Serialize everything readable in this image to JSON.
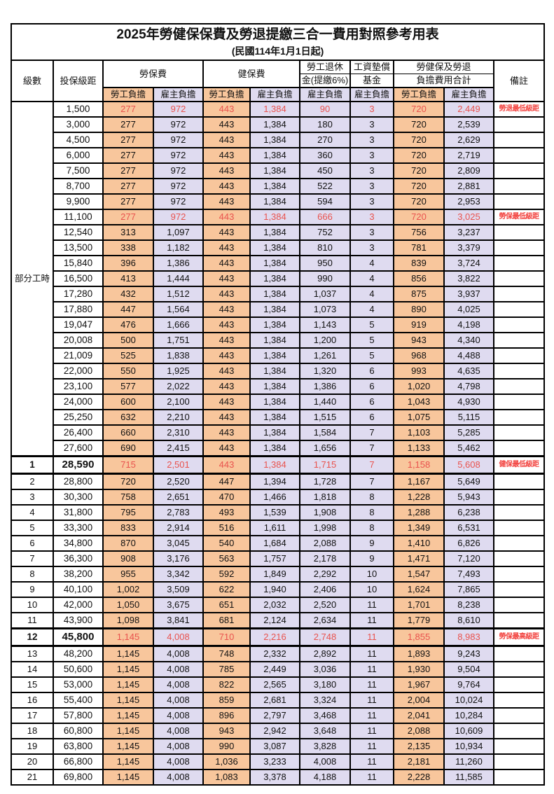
{
  "title": "2025年勞健保保費及勞退提繳三合一費用對照參考用表",
  "subtitle": "(民國114年1月1日起)",
  "header": {
    "level": "級數",
    "bracket": "投保級距",
    "labor": "勞保費",
    "health": "健保費",
    "pension_line1": "勞工退休",
    "pension_line2": "金(提繳6%)",
    "wagefund_line1": "工資墊償",
    "wagefund_line2": "基金",
    "total_line1": "勞健保及勞退",
    "total_line2": "負擔費用合計",
    "remark": "備註",
    "employee": "勞工負擔",
    "employer": "雇主負擔"
  },
  "colors": {
    "employee_bg": "#f8c69c",
    "employer_bg": "#dfdbf0",
    "value_red": "#e9534e",
    "remark_red": "#f2423e",
    "border": "#000000"
  },
  "part_time_label": "部分工時",
  "part_time_rowspan": 23,
  "rows": [
    {
      "level": "",
      "bracket": "1,500",
      "values": [
        "277",
        "972",
        "443",
        "1,384",
        "90",
        "3",
        "720",
        "2,449"
      ],
      "remark": "勞退最低級距",
      "red": true,
      "bold": false
    },
    {
      "level": "",
      "bracket": "3,000",
      "values": [
        "277",
        "972",
        "443",
        "1,384",
        "180",
        "3",
        "720",
        "2,539"
      ],
      "remark": "",
      "red": false,
      "bold": false
    },
    {
      "level": "",
      "bracket": "4,500",
      "values": [
        "277",
        "972",
        "443",
        "1,384",
        "270",
        "3",
        "720",
        "2,629"
      ],
      "remark": "",
      "red": false,
      "bold": false
    },
    {
      "level": "",
      "bracket": "6,000",
      "values": [
        "277",
        "972",
        "443",
        "1,384",
        "360",
        "3",
        "720",
        "2,719"
      ],
      "remark": "",
      "red": false,
      "bold": false
    },
    {
      "level": "",
      "bracket": "7,500",
      "values": [
        "277",
        "972",
        "443",
        "1,384",
        "450",
        "3",
        "720",
        "2,809"
      ],
      "remark": "",
      "red": false,
      "bold": false
    },
    {
      "level": "",
      "bracket": "8,700",
      "values": [
        "277",
        "972",
        "443",
        "1,384",
        "522",
        "3",
        "720",
        "2,881"
      ],
      "remark": "",
      "red": false,
      "bold": false
    },
    {
      "level": "",
      "bracket": "9,900",
      "values": [
        "277",
        "972",
        "443",
        "1,384",
        "594",
        "3",
        "720",
        "2,953"
      ],
      "remark": "",
      "red": false,
      "bold": false
    },
    {
      "level": "",
      "bracket": "11,100",
      "values": [
        "277",
        "972",
        "443",
        "1,384",
        "666",
        "3",
        "720",
        "3,025"
      ],
      "remark": "勞保最低級距",
      "red": true,
      "bold": false
    },
    {
      "level": "",
      "bracket": "12,540",
      "values": [
        "313",
        "1,097",
        "443",
        "1,384",
        "752",
        "3",
        "756",
        "3,237"
      ],
      "remark": "",
      "red": false,
      "bold": false
    },
    {
      "level": "",
      "bracket": "13,500",
      "values": [
        "338",
        "1,182",
        "443",
        "1,384",
        "810",
        "3",
        "781",
        "3,379"
      ],
      "remark": "",
      "red": false,
      "bold": false
    },
    {
      "level": "",
      "bracket": "15,840",
      "values": [
        "396",
        "1,386",
        "443",
        "1,384",
        "950",
        "4",
        "839",
        "3,724"
      ],
      "remark": "",
      "red": false,
      "bold": false
    },
    {
      "level": "",
      "bracket": "16,500",
      "values": [
        "413",
        "1,444",
        "443",
        "1,384",
        "990",
        "4",
        "856",
        "3,822"
      ],
      "remark": "",
      "red": false,
      "bold": false
    },
    {
      "level": "",
      "bracket": "17,280",
      "values": [
        "432",
        "1,512",
        "443",
        "1,384",
        "1,037",
        "4",
        "875",
        "3,937"
      ],
      "remark": "",
      "red": false,
      "bold": false
    },
    {
      "level": "",
      "bracket": "17,880",
      "values": [
        "447",
        "1,564",
        "443",
        "1,384",
        "1,073",
        "4",
        "890",
        "4,025"
      ],
      "remark": "",
      "red": false,
      "bold": false
    },
    {
      "level": "",
      "bracket": "19,047",
      "values": [
        "476",
        "1,666",
        "443",
        "1,384",
        "1,143",
        "5",
        "919",
        "4,198"
      ],
      "remark": "",
      "red": false,
      "bold": false
    },
    {
      "level": "",
      "bracket": "20,008",
      "values": [
        "500",
        "1,751",
        "443",
        "1,384",
        "1,200",
        "5",
        "943",
        "4,340"
      ],
      "remark": "",
      "red": false,
      "bold": false
    },
    {
      "level": "",
      "bracket": "21,009",
      "values": [
        "525",
        "1,838",
        "443",
        "1,384",
        "1,261",
        "5",
        "968",
        "4,488"
      ],
      "remark": "",
      "red": false,
      "bold": false
    },
    {
      "level": "",
      "bracket": "22,000",
      "values": [
        "550",
        "1,925",
        "443",
        "1,384",
        "1,320",
        "6",
        "993",
        "4,635"
      ],
      "remark": "",
      "red": false,
      "bold": false
    },
    {
      "level": "",
      "bracket": "23,100",
      "values": [
        "577",
        "2,022",
        "443",
        "1,384",
        "1,386",
        "6",
        "1,020",
        "4,798"
      ],
      "remark": "",
      "red": false,
      "bold": false
    },
    {
      "level": "",
      "bracket": "24,000",
      "values": [
        "600",
        "2,100",
        "443",
        "1,384",
        "1,440",
        "6",
        "1,043",
        "4,930"
      ],
      "remark": "",
      "red": false,
      "bold": false
    },
    {
      "level": "",
      "bracket": "25,250",
      "values": [
        "632",
        "2,210",
        "443",
        "1,384",
        "1,515",
        "6",
        "1,075",
        "5,115"
      ],
      "remark": "",
      "red": false,
      "bold": false
    },
    {
      "level": "",
      "bracket": "26,400",
      "values": [
        "660",
        "2,310",
        "443",
        "1,384",
        "1,584",
        "7",
        "1,103",
        "5,285"
      ],
      "remark": "",
      "red": false,
      "bold": false
    },
    {
      "level": "",
      "bracket": "27,600",
      "values": [
        "690",
        "2,415",
        "443",
        "1,384",
        "1,656",
        "7",
        "1,133",
        "5,462"
      ],
      "remark": "",
      "red": false,
      "bold": false
    },
    {
      "level": "1",
      "bracket": "28,590",
      "values": [
        "715",
        "2,501",
        "443",
        "1,384",
        "1,715",
        "7",
        "1,158",
        "5,608"
      ],
      "remark": "健保最低級距",
      "red": true,
      "bold": true
    },
    {
      "level": "2",
      "bracket": "28,800",
      "values": [
        "720",
        "2,520",
        "447",
        "1,394",
        "1,728",
        "7",
        "1,167",
        "5,649"
      ],
      "remark": "",
      "red": false,
      "bold": false
    },
    {
      "level": "3",
      "bracket": "30,300",
      "values": [
        "758",
        "2,651",
        "470",
        "1,466",
        "1,818",
        "8",
        "1,228",
        "5,943"
      ],
      "remark": "",
      "red": false,
      "bold": false
    },
    {
      "level": "4",
      "bracket": "31,800",
      "values": [
        "795",
        "2,783",
        "493",
        "1,539",
        "1,908",
        "8",
        "1,288",
        "6,238"
      ],
      "remark": "",
      "red": false,
      "bold": false
    },
    {
      "level": "5",
      "bracket": "33,300",
      "values": [
        "833",
        "2,914",
        "516",
        "1,611",
        "1,998",
        "8",
        "1,349",
        "6,531"
      ],
      "remark": "",
      "red": false,
      "bold": false
    },
    {
      "level": "6",
      "bracket": "34,800",
      "values": [
        "870",
        "3,045",
        "540",
        "1,684",
        "2,088",
        "9",
        "1,410",
        "6,826"
      ],
      "remark": "",
      "red": false,
      "bold": false
    },
    {
      "level": "7",
      "bracket": "36,300",
      "values": [
        "908",
        "3,176",
        "563",
        "1,757",
        "2,178",
        "9",
        "1,471",
        "7,120"
      ],
      "remark": "",
      "red": false,
      "bold": false
    },
    {
      "level": "8",
      "bracket": "38,200",
      "values": [
        "955",
        "3,342",
        "592",
        "1,849",
        "2,292",
        "10",
        "1,547",
        "7,493"
      ],
      "remark": "",
      "red": false,
      "bold": false
    },
    {
      "level": "9",
      "bracket": "40,100",
      "values": [
        "1,002",
        "3,509",
        "622",
        "1,940",
        "2,406",
        "10",
        "1,624",
        "7,865"
      ],
      "remark": "",
      "red": false,
      "bold": false
    },
    {
      "level": "10",
      "bracket": "42,000",
      "values": [
        "1,050",
        "3,675",
        "651",
        "2,032",
        "2,520",
        "11",
        "1,701",
        "8,238"
      ],
      "remark": "",
      "red": false,
      "bold": false
    },
    {
      "level": "11",
      "bracket": "43,900",
      "values": [
        "1,098",
        "3,841",
        "681",
        "2,124",
        "2,634",
        "11",
        "1,779",
        "8,610"
      ],
      "remark": "",
      "red": false,
      "bold": false
    },
    {
      "level": "12",
      "bracket": "45,800",
      "values": [
        "1,145",
        "4,008",
        "710",
        "2,216",
        "2,748",
        "11",
        "1,855",
        "8,983"
      ],
      "remark": "勞保最高級距",
      "red": true,
      "bold": true
    },
    {
      "level": "13",
      "bracket": "48,200",
      "values": [
        "1,145",
        "4,008",
        "748",
        "2,332",
        "2,892",
        "11",
        "1,893",
        "9,243"
      ],
      "remark": "",
      "red": false,
      "bold": false
    },
    {
      "level": "14",
      "bracket": "50,600",
      "values": [
        "1,145",
        "4,008",
        "785",
        "2,449",
        "3,036",
        "11",
        "1,930",
        "9,504"
      ],
      "remark": "",
      "red": false,
      "bold": false
    },
    {
      "level": "15",
      "bracket": "53,000",
      "values": [
        "1,145",
        "4,008",
        "822",
        "2,565",
        "3,180",
        "11",
        "1,967",
        "9,764"
      ],
      "remark": "",
      "red": false,
      "bold": false
    },
    {
      "level": "16",
      "bracket": "55,400",
      "values": [
        "1,145",
        "4,008",
        "859",
        "2,681",
        "3,324",
        "11",
        "2,004",
        "10,024"
      ],
      "remark": "",
      "red": false,
      "bold": false
    },
    {
      "level": "17",
      "bracket": "57,800",
      "values": [
        "1,145",
        "4,008",
        "896",
        "2,797",
        "3,468",
        "11",
        "2,041",
        "10,284"
      ],
      "remark": "",
      "red": false,
      "bold": false
    },
    {
      "level": "18",
      "bracket": "60,800",
      "values": [
        "1,145",
        "4,008",
        "943",
        "2,942",
        "3,648",
        "11",
        "2,088",
        "10,609"
      ],
      "remark": "",
      "red": false,
      "bold": false
    },
    {
      "level": "19",
      "bracket": "63,800",
      "values": [
        "1,145",
        "4,008",
        "990",
        "3,087",
        "3,828",
        "11",
        "2,135",
        "10,934"
      ],
      "remark": "",
      "red": false,
      "bold": false
    },
    {
      "level": "20",
      "bracket": "66,800",
      "values": [
        "1,145",
        "4,008",
        "1,036",
        "3,233",
        "4,008",
        "11",
        "2,181",
        "11,260"
      ],
      "remark": "",
      "red": false,
      "bold": false
    },
    {
      "level": "21",
      "bracket": "69,800",
      "values": [
        "1,145",
        "4,008",
        "1,083",
        "3,378",
        "4,188",
        "11",
        "2,228",
        "11,585"
      ],
      "remark": "",
      "red": false,
      "bold": false
    }
  ]
}
